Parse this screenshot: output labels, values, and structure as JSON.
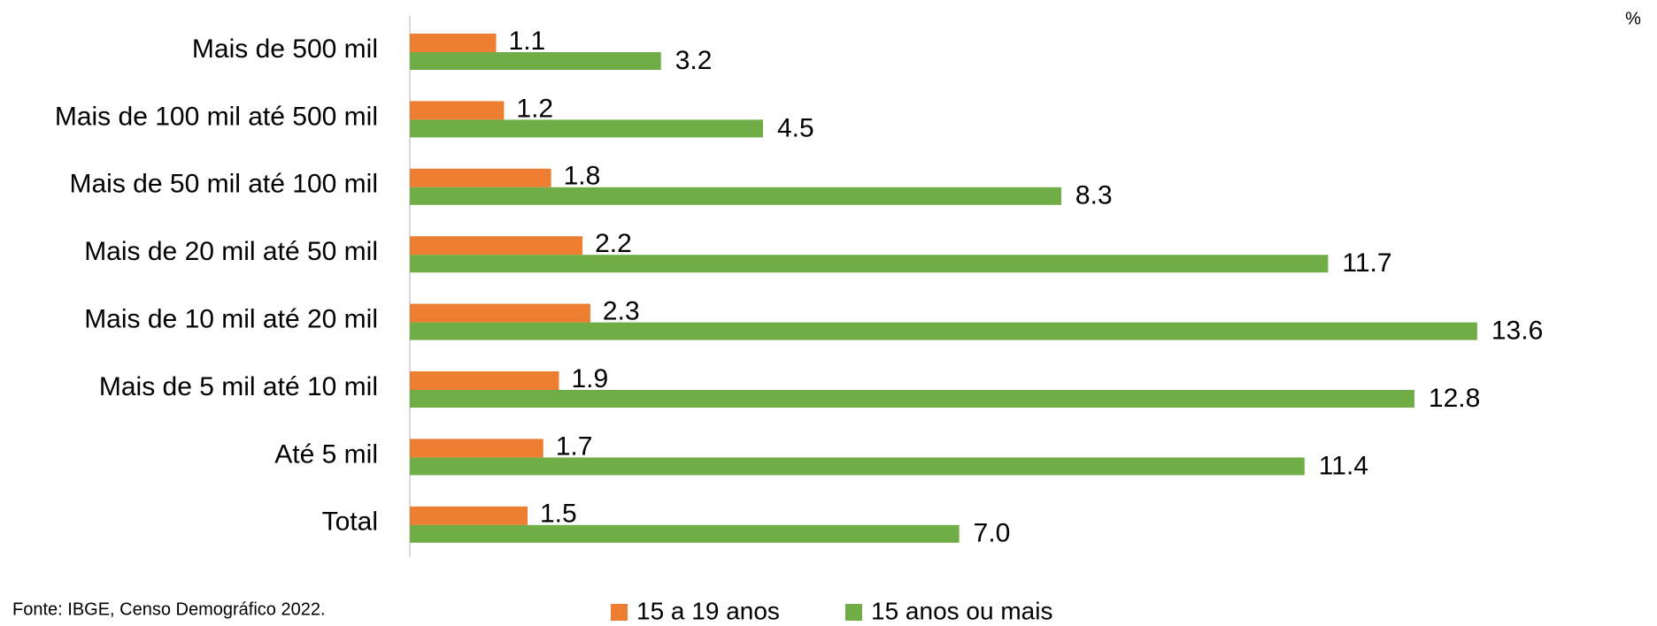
{
  "chart_data": {
    "type": "hbar",
    "unit": "%",
    "source": "Fonte: IBGE, Censo Demográfico 2022.",
    "categories": [
      "Mais de 500 mil",
      "Mais de 100 mil até 500 mil",
      "Mais de 50 mil até 100 mil",
      "Mais de 20 mil até 50 mil",
      "Mais de 10 mil até 20 mil",
      "Mais de 5 mil até 10 mil",
      "Até 5 mil",
      "Total"
    ],
    "series": [
      {
        "name": "15 a 19 anos",
        "color": "#ed7d31",
        "values": [
          1.1,
          1.2,
          1.8,
          2.2,
          2.3,
          1.9,
          1.7,
          1.5
        ]
      },
      {
        "name": "15 anos ou mais",
        "color": "#70ad47",
        "values": [
          3.2,
          4.5,
          8.3,
          11.7,
          13.6,
          12.8,
          11.4,
          7.0
        ],
        "value_labels": [
          "3.2",
          "4.5",
          "8.3",
          "11.7",
          "13.6",
          "12.8",
          "11.4",
          "7.0"
        ]
      }
    ],
    "xlim": [
      0,
      15
    ]
  }
}
